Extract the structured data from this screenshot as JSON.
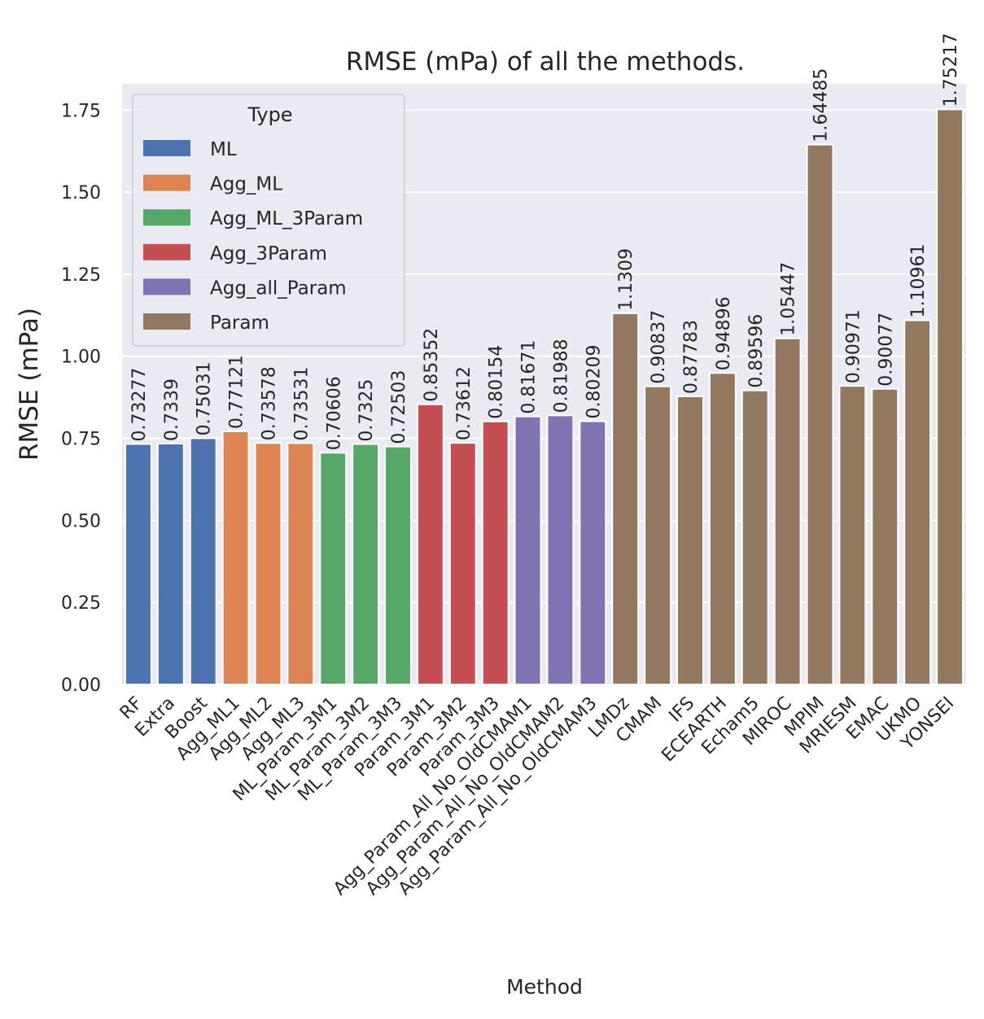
{
  "chart_data": {
    "type": "bar",
    "title": "RMSE (mPa) of all the methods.",
    "xlabel": "Method",
    "ylabel": "RMSE (mPa)",
    "ylim": [
      0,
      1.83
    ],
    "yticks": [
      "0.00",
      "0.25",
      "0.50",
      "0.75",
      "1.00",
      "1.25",
      "1.50",
      "1.75"
    ],
    "grid": true,
    "legend": {
      "title": "Type",
      "placement": "upper-left",
      "entries": [
        {
          "name": "ML",
          "color": "#4c72b0"
        },
        {
          "name": "Agg_ML",
          "color": "#dd8452"
        },
        {
          "name": "Agg_ML_3Param",
          "color": "#55a868"
        },
        {
          "name": "Agg_3Param",
          "color": "#c44e52"
        },
        {
          "name": "Agg_all_Param",
          "color": "#8172b3"
        },
        {
          "name": "Param",
          "color": "#937860"
        }
      ]
    },
    "bars": [
      {
        "category": "RF",
        "value": 0.73277,
        "label": "0.73277",
        "type": "ML"
      },
      {
        "category": "Extra",
        "value": 0.7339,
        "label": "0.7339",
        "type": "ML"
      },
      {
        "category": "Boost",
        "value": 0.75031,
        "label": "0.75031",
        "type": "ML"
      },
      {
        "category": "Agg_ML1",
        "value": 0.77121,
        "label": "0.77121",
        "type": "Agg_ML"
      },
      {
        "category": "Agg_ML2",
        "value": 0.73578,
        "label": "0.73578",
        "type": "Agg_ML"
      },
      {
        "category": "Agg_ML3",
        "value": 0.73531,
        "label": "0.73531",
        "type": "Agg_ML"
      },
      {
        "category": "ML_Param_3M1",
        "value": 0.70606,
        "label": "0.70606",
        "type": "Agg_ML_3Param"
      },
      {
        "category": "ML_Param_3M2",
        "value": 0.7325,
        "label": "0.7325",
        "type": "Agg_ML_3Param"
      },
      {
        "category": "ML_Param_3M3",
        "value": 0.72503,
        "label": "0.72503",
        "type": "Agg_ML_3Param"
      },
      {
        "category": "Param_3M1",
        "value": 0.85352,
        "label": "0.85352",
        "type": "Agg_3Param"
      },
      {
        "category": "Param_3M2",
        "value": 0.73612,
        "label": "0.73612",
        "type": "Agg_3Param"
      },
      {
        "category": "Param_3M3",
        "value": 0.80154,
        "label": "0.80154",
        "type": "Agg_3Param"
      },
      {
        "category": "Agg_Param_All_No_OldCMAM1",
        "value": 0.81671,
        "label": "0.81671",
        "type": "Agg_all_Param"
      },
      {
        "category": "Agg_Param_All_No_OldCMAM2",
        "value": 0.81988,
        "label": "0.81988",
        "type": "Agg_all_Param"
      },
      {
        "category": "Agg_Param_All_No_OldCMAM3",
        "value": 0.80209,
        "label": "0.80209",
        "type": "Agg_all_Param"
      },
      {
        "category": "LMDz",
        "value": 1.1309,
        "label": "1.1309",
        "type": "Param"
      },
      {
        "category": "CMAM",
        "value": 0.90837,
        "label": "0.90837",
        "type": "Param"
      },
      {
        "category": "IFS",
        "value": 0.87783,
        "label": "0.87783",
        "type": "Param"
      },
      {
        "category": "ECEARTH",
        "value": 0.94896,
        "label": "0.94896",
        "type": "Param"
      },
      {
        "category": "Echam5",
        "value": 0.89596,
        "label": "0.89596",
        "type": "Param"
      },
      {
        "category": "MIROC",
        "value": 1.05447,
        "label": "1.05447",
        "type": "Param"
      },
      {
        "category": "MPIM",
        "value": 1.64485,
        "label": "1.64485",
        "type": "Param"
      },
      {
        "category": "MRIESM",
        "value": 0.90971,
        "label": "0.90971",
        "type": "Param"
      },
      {
        "category": "EMAC",
        "value": 0.90077,
        "label": "0.90077",
        "type": "Param"
      },
      {
        "category": "UKMO",
        "value": 1.10961,
        "label": "1.10961",
        "type": "Param"
      },
      {
        "category": "YONSEI",
        "value": 1.75217,
        "label": "1.75217",
        "type": "Param"
      }
    ]
  },
  "style": {
    "plot_background": "#eaeaf2",
    "grid_color": "#ffffff",
    "text_color": "#262626"
  }
}
